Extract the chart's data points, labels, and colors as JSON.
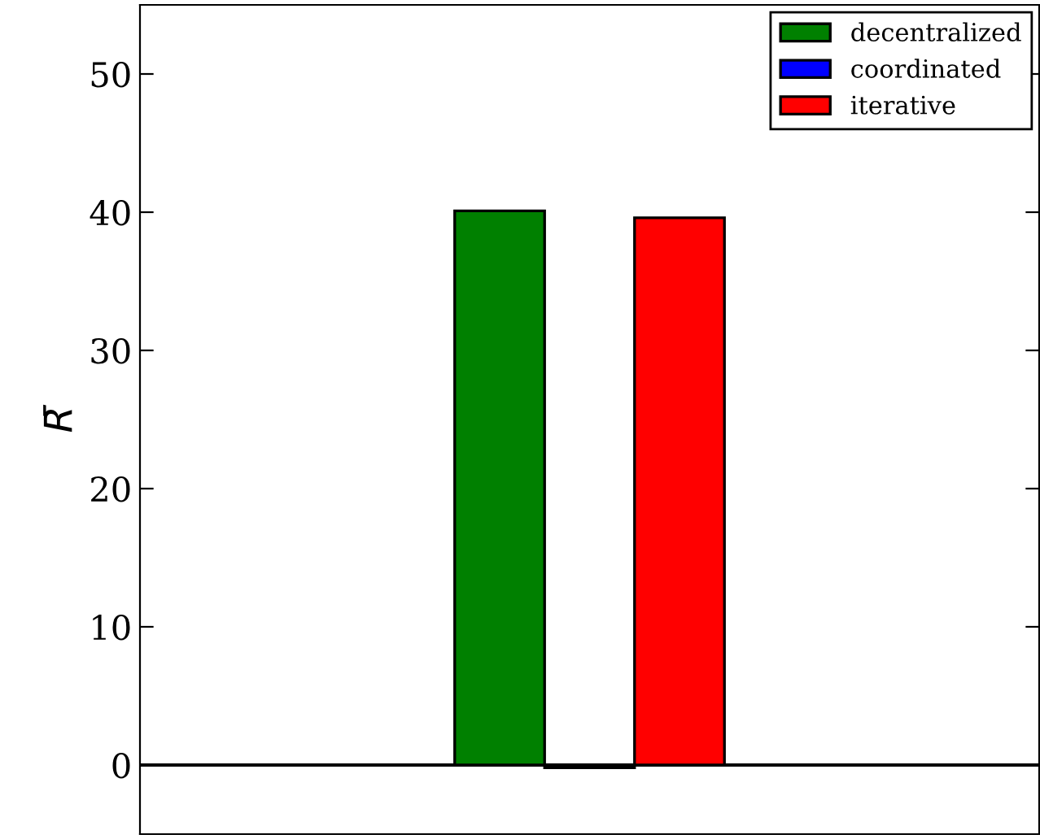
{
  "chart_data": {
    "type": "bar",
    "ylabel": "R̄",
    "categories": [
      null
    ],
    "series": [
      {
        "name": "decentralized",
        "color": "#008000",
        "values": [
          40.1
        ]
      },
      {
        "name": "coordinated",
        "color": "#0000ff",
        "values": [
          -0.2
        ]
      },
      {
        "name": "iterative",
        "color": "#ff0000",
        "values": [
          39.6
        ]
      }
    ],
    "ylim": [
      -5,
      55
    ],
    "yticks": [
      0,
      10,
      20,
      30,
      40,
      50
    ],
    "tick_labels": "y",
    "legend": "top right",
    "grid": false,
    "ref_lines": [
      {
        "axis": "y",
        "value": 0,
        "color": "#000000"
      }
    ]
  }
}
